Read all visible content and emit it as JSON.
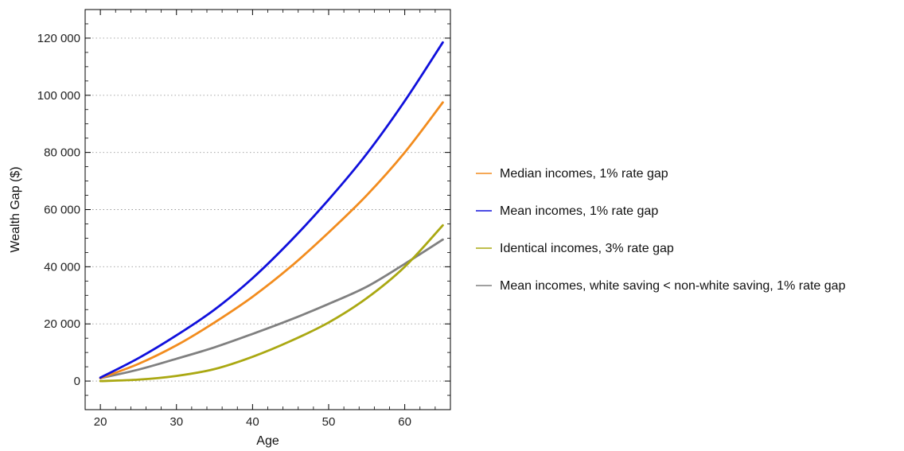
{
  "chart_data": {
    "type": "line",
    "title": "",
    "xlabel": "Age",
    "ylabel": "Wealth Gap ($)",
    "xlim": [
      18,
      66
    ],
    "ylim": [
      -10000,
      130000
    ],
    "x_ticks": [
      20,
      30,
      40,
      50,
      60
    ],
    "x_tick_labels": [
      "20",
      "30",
      "40",
      "50",
      "60"
    ],
    "y_ticks": [
      0,
      20000,
      40000,
      60000,
      80000,
      100000,
      120000
    ],
    "y_tick_labels": [
      "0",
      "20 000",
      "40 000",
      "60 000",
      "80 000",
      "100 000",
      "120 000"
    ],
    "grid": "horizontal dotted",
    "legend_placement": "right",
    "series": [
      {
        "name": "Median incomes, 1% rate gap",
        "color": "#f28c1e",
        "x": [
          20,
          25,
          30,
          35,
          40,
          45,
          50,
          55,
          60,
          65
        ],
        "values": [
          1000,
          6000,
          12500,
          20500,
          29500,
          40000,
          52000,
          65000,
          80000,
          97500
        ]
      },
      {
        "name": "Mean incomes, 1% rate gap",
        "color": "#1010dc",
        "x": [
          20,
          25,
          30,
          35,
          40,
          45,
          50,
          55,
          60,
          65
        ],
        "values": [
          1200,
          8000,
          16000,
          25000,
          36000,
          49000,
          63500,
          79500,
          98000,
          118500
        ]
      },
      {
        "name": "Identical incomes, 3% rate gap",
        "color": "#aaa812",
        "x": [
          20,
          25,
          30,
          35,
          40,
          45,
          50,
          55,
          60,
          65
        ],
        "values": [
          0,
          500,
          1800,
          4200,
          8500,
          14000,
          20500,
          29000,
          40000,
          54500
        ]
      },
      {
        "name": "Mean incomes, white saving < non-white saving, 1% rate gap",
        "color": "#808080",
        "x": [
          20,
          25,
          30,
          35,
          40,
          45,
          50,
          55,
          60,
          65
        ],
        "values": [
          1000,
          4000,
          7800,
          11800,
          16500,
          21500,
          27000,
          33000,
          41000,
          49500
        ]
      }
    ]
  }
}
